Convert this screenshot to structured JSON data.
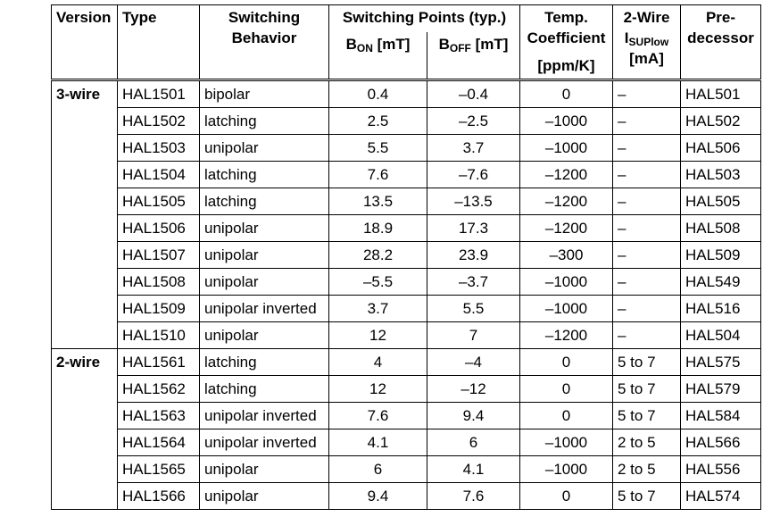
{
  "header": {
    "version": "Version",
    "type": "Type",
    "behavior": [
      "Switching",
      "Behavior"
    ],
    "switching_points": "Switching Points (typ.)",
    "bon": {
      "symbol": "B",
      "sub": "ON",
      "unit": "[mT]"
    },
    "boff": {
      "symbol": "B",
      "sub": "OFF",
      "unit": "[mT]"
    },
    "temp": [
      "Temp.",
      "Coefficient",
      "[ppm/K]"
    ],
    "two_wire": {
      "title": "2-Wire",
      "symbol": "I",
      "sub": "SUPlow",
      "unit": "[mA]"
    },
    "predecessor": [
      "Pre-",
      "decessor"
    ]
  },
  "groups": [
    {
      "version": "3-wire",
      "rows": [
        [
          "HAL1501",
          "bipolar",
          "0.4",
          "–0.4",
          "0",
          "–",
          "HAL501"
        ],
        [
          "HAL1502",
          "latching",
          "2.5",
          "–2.5",
          "–1000",
          "–",
          "HAL502"
        ],
        [
          "HAL1503",
          "unipolar",
          "5.5",
          "3.7",
          "–1000",
          "–",
          "HAL506"
        ],
        [
          "HAL1504",
          "latching",
          "7.6",
          "–7.6",
          "–1200",
          "–",
          "HAL503"
        ],
        [
          "HAL1505",
          "latching",
          "13.5",
          "–13.5",
          "–1200",
          "–",
          "HAL505"
        ],
        [
          "HAL1506",
          "unipolar",
          "18.9",
          "17.3",
          "–1200",
          "–",
          "HAL508"
        ],
        [
          "HAL1507",
          "unipolar",
          "28.2",
          "23.9",
          "–300",
          "–",
          "HAL509"
        ],
        [
          "HAL1508",
          "unipolar",
          "–5.5",
          "–3.7",
          "–1000",
          "–",
          "HAL549"
        ],
        [
          "HAL1509",
          "unipolar inverted",
          "3.7",
          "5.5",
          "–1000",
          "–",
          "HAL516"
        ],
        [
          "HAL1510",
          "unipolar",
          "12",
          "7",
          "–1200",
          "–",
          "HAL504"
        ]
      ]
    },
    {
      "version": "2-wire",
      "rows": [
        [
          "HAL1561",
          "latching",
          "4",
          "–4",
          "0",
          "5 to 7",
          "HAL575"
        ],
        [
          "HAL1562",
          "latching",
          "12",
          "–12",
          "0",
          "5 to 7",
          "HAL579"
        ],
        [
          "HAL1563",
          "unipolar inverted",
          "7.6",
          "9.4",
          "0",
          "5 to 7",
          "HAL584"
        ],
        [
          "HAL1564",
          "unipolar inverted",
          "4.1",
          "6",
          "–1000",
          "2 to 5",
          "HAL566"
        ],
        [
          "HAL1565",
          "unipolar",
          "6",
          "4.1",
          "–1000",
          "2 to 5",
          "HAL556"
        ],
        [
          "HAL1566",
          "unipolar",
          "9.4",
          "7.6",
          "0",
          "5 to 7",
          "HAL574"
        ]
      ]
    }
  ]
}
